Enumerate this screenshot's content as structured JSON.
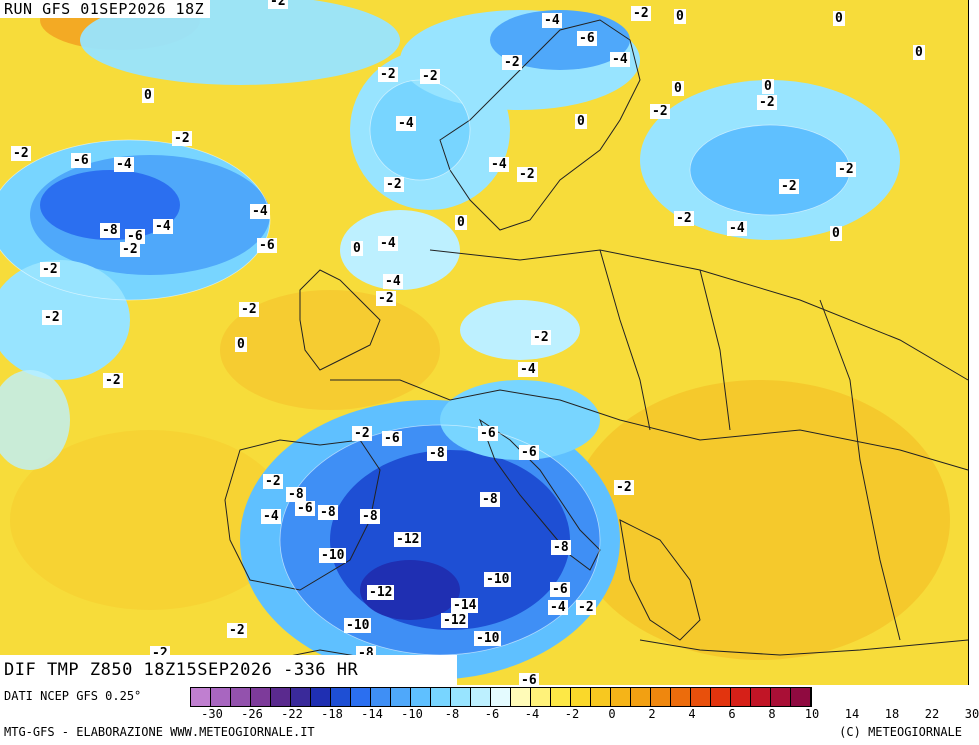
{
  "header": {
    "run_title": "RUN GFS 01SEP2026 18Z",
    "field_title": "DIF TMP Z850 18Z15SEP2026 -336 HR"
  },
  "footer": {
    "data_source": "DATI NCEP GFS 0.25°",
    "credit_left": "MTG-GFS - ELABORAZIONE WWW.METEOGIORNALE.IT",
    "credit_right": "(C) METEOGIORNALE"
  },
  "colorbar": {
    "colors": [
      "#c07fd0",
      "#a866c0",
      "#9352ad",
      "#7d3b9a",
      "#5a2a8e",
      "#3a2a9a",
      "#1f2fb2",
      "#1e4fd4",
      "#2b6ff0",
      "#3f8ff5",
      "#4fa8fa",
      "#5fc0ff",
      "#78d5ff",
      "#98e4ff",
      "#bdf0ff",
      "#e4fbff",
      "#fffbb8",
      "#fff27a",
      "#fde846",
      "#fad82a",
      "#f7c820",
      "#f5b418",
      "#f2a012",
      "#ef870e",
      "#ec6c0c",
      "#e8500c",
      "#e2340e",
      "#d62018",
      "#c11526",
      "#a90f36",
      "#8f0a40"
    ],
    "tick_labels": [
      "-30",
      "-26",
      "-22",
      "-18",
      "-14",
      "-10",
      "-8",
      "-6",
      "-4",
      "-2",
      "0",
      "2",
      "4",
      "6",
      "8",
      "10",
      "14",
      "18",
      "22",
      "30"
    ]
  },
  "map_labels": [
    {
      "text": "-2"
    },
    {
      "text": "-4"
    },
    {
      "text": "-2"
    },
    {
      "text": "0"
    },
    {
      "text": "0"
    },
    {
      "text": "-6"
    },
    {
      "text": "-4"
    },
    {
      "text": "0"
    },
    {
      "text": "-2"
    },
    {
      "text": "-2"
    },
    {
      "text": "-2"
    },
    {
      "text": "0"
    },
    {
      "text": "0"
    },
    {
      "text": "0"
    },
    {
      "text": "-2"
    },
    {
      "text": "-2"
    },
    {
      "text": "-4"
    },
    {
      "text": "0"
    },
    {
      "text": "-2"
    },
    {
      "text": "-2"
    },
    {
      "text": "-6"
    },
    {
      "text": "-4"
    },
    {
      "text": "-4"
    },
    {
      "text": "-2"
    },
    {
      "text": "-2"
    },
    {
      "text": "-2"
    },
    {
      "text": "-4"
    },
    {
      "text": "-2"
    },
    {
      "text": "-8"
    },
    {
      "text": "-6"
    },
    {
      "text": "-2"
    },
    {
      "text": "-4"
    },
    {
      "text": "-6"
    },
    {
      "text": "0"
    },
    {
      "text": "-4"
    },
    {
      "text": "0"
    },
    {
      "text": "-2"
    },
    {
      "text": "-4"
    },
    {
      "text": "-2"
    },
    {
      "text": "-4"
    },
    {
      "text": "-2"
    },
    {
      "text": "0"
    },
    {
      "text": "-2"
    },
    {
      "text": "-2"
    },
    {
      "text": "-2"
    },
    {
      "text": "-4"
    },
    {
      "text": "-2"
    },
    {
      "text": "0"
    },
    {
      "text": "-2"
    },
    {
      "text": "-6"
    },
    {
      "text": "-6"
    },
    {
      "text": "-8"
    },
    {
      "text": "-6"
    },
    {
      "text": "-2"
    },
    {
      "text": "-2"
    },
    {
      "text": "-8"
    },
    {
      "text": "-6"
    },
    {
      "text": "-8"
    },
    {
      "text": "-8"
    },
    {
      "text": "-8"
    },
    {
      "text": "-4"
    },
    {
      "text": "-12"
    },
    {
      "text": "-10"
    },
    {
      "text": "-8"
    },
    {
      "text": "-12"
    },
    {
      "text": "-10"
    },
    {
      "text": "-6"
    },
    {
      "text": "-14"
    },
    {
      "text": "-4"
    },
    {
      "text": "-2"
    },
    {
      "text": "-12"
    },
    {
      "text": "-2"
    },
    {
      "text": "-10"
    },
    {
      "text": "-10"
    },
    {
      "text": "-2"
    },
    {
      "text": "-8"
    },
    {
      "text": "-6"
    }
  ]
}
